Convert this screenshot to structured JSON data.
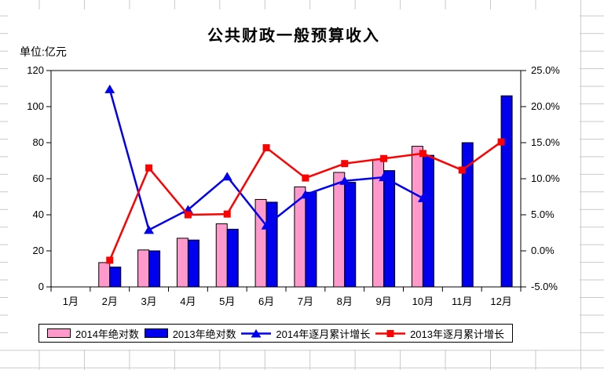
{
  "chart_data": {
    "type": "bar+line",
    "title": "公共财政一般预算收入",
    "unit_label": "单位:亿元",
    "categories": [
      "1月",
      "2月",
      "3月",
      "4月",
      "5月",
      "6月",
      "7月",
      "8月",
      "9月",
      "10月",
      "11月",
      "12月"
    ],
    "left_axis": {
      "min": 0,
      "max": 120,
      "tick_values": [
        0,
        20,
        40,
        60,
        80,
        100,
        120
      ],
      "tick_labels": [
        "0",
        "20",
        "40",
        "60",
        "80",
        "100",
        "120"
      ]
    },
    "right_axis": {
      "min": -5,
      "max": 25,
      "tick_values": [
        -5,
        0,
        5,
        10,
        15,
        20,
        25
      ],
      "tick_labels": [
        "-5.0%",
        "0.0%",
        "5.0%",
        "10.0%",
        "15.0%",
        "20.0%",
        "25.0%"
      ]
    },
    "series": [
      {
        "name": "2014年绝对数",
        "type": "bar",
        "axis": "left",
        "color": "#FF99CC",
        "values": [
          null,
          13.5,
          20.5,
          27,
          35,
          48.5,
          55.5,
          63.5,
          70.5,
          78,
          null,
          null
        ]
      },
      {
        "name": "2013年绝对数",
        "type": "bar",
        "axis": "left",
        "color": "#0000EE",
        "values": [
          null,
          11,
          20,
          26,
          32,
          47,
          52.5,
          58,
          64.5,
          73,
          80,
          106
        ]
      },
      {
        "name": "2014年逐月累计增长",
        "type": "line",
        "marker": "triangle",
        "axis": "right",
        "color": "#0000EE",
        "values": [
          null,
          22.4,
          2.9,
          5.7,
          10.3,
          3.5,
          7.8,
          9.7,
          10.2,
          7.3,
          null,
          null
        ]
      },
      {
        "name": "2013年逐月累计增长",
        "type": "line",
        "marker": "square",
        "axis": "right",
        "color": "#FF0000",
        "values": [
          null,
          -1.3,
          11.5,
          5.0,
          5.1,
          14.3,
          10.1,
          12.1,
          12.8,
          13.5,
          11.2,
          15.1
        ]
      }
    ],
    "legend_position": "bottom",
    "plot_gridlines": "off"
  },
  "colors": {
    "background": "#FFFFFF",
    "sheet_gridline": "#C9C9C9",
    "plot_border": "#000000",
    "bar_2014": "#FF99CC",
    "bar_2013": "#0000EE",
    "line_2014": "#0000EE",
    "line_2013": "#FF0000"
  }
}
